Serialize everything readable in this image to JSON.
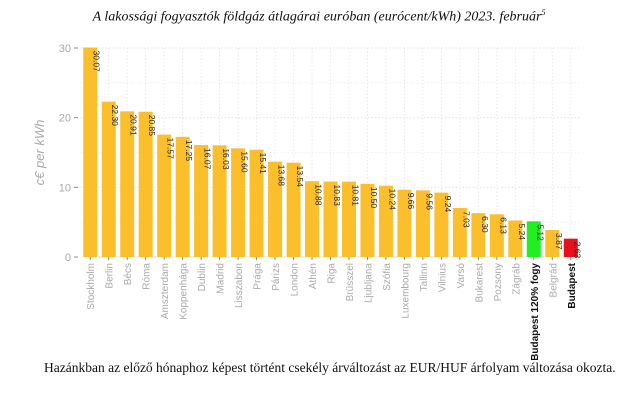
{
  "chart_data": {
    "type": "bar",
    "title": "A lakossági fogyasztók földgáz átlagárai euróban (eurócent/kWh) 2023. február",
    "title_footnote": "5",
    "ylabel": "c€ per kWh",
    "xlabel": "",
    "ylim": [
      0,
      30
    ],
    "yticks": [
      0,
      10,
      20,
      30
    ],
    "grid": true,
    "categories": [
      "Stockholm",
      "Berlin",
      "Bécs",
      "Róma",
      "Amszterdam",
      "Koppenhága",
      "Dublin",
      "Madrid",
      "Lisszabon",
      "Prága",
      "Párizs",
      "London",
      "Athén",
      "Riga",
      "Brüsszel",
      "Ljubljana",
      "Szófia",
      "Luxembourg",
      "Tallinn",
      "Vilnius",
      "Varsó",
      "Bukarest",
      "Pozsony",
      "Zágráb",
      "Budapest 120% fogy",
      "Belgrád",
      "Budapest"
    ],
    "values": [
      30.07,
      22.3,
      20.91,
      20.85,
      17.57,
      17.25,
      16.07,
      16.03,
      15.6,
      15.41,
      13.68,
      13.54,
      10.88,
      10.83,
      10.81,
      10.5,
      10.24,
      9.66,
      9.56,
      9.24,
      7.03,
      6.3,
      6.13,
      5.24,
      5.12,
      3.87,
      2.63
    ],
    "labels": [
      "30.07",
      "22.30",
      "20.91",
      "20.85",
      "17.57",
      "17.25",
      "16.07",
      "16.03",
      "15.60",
      "15.41",
      "13.68",
      "13.54",
      "10.88",
      "10.83",
      "10.81",
      "10.50",
      "10.24",
      "9.66",
      "9.56",
      "9.24",
      "7.03",
      "6.30",
      "6.13",
      "5.24",
      "5.12",
      "3.87",
      "2.63"
    ],
    "colors": {
      "default": "#fbbf2c",
      "highlight_green": "#22ee22",
      "highlight_red": "#e8101c"
    },
    "highlights": {
      "Budapest 120% fogy": "highlight_green",
      "Budapest": "highlight_red"
    },
    "bold_categories": [
      "Budapest 120% fogy",
      "Budapest"
    ]
  },
  "caption": "Hazánkban az előző hónaphoz képest történt csekély árváltozást az EUR/HUF árfolyam változása okozta."
}
